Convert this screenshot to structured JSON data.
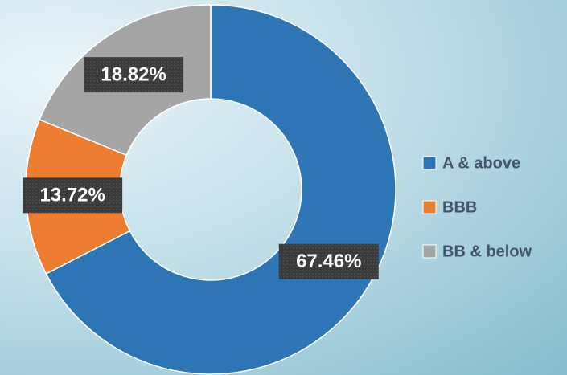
{
  "chart_data": {
    "type": "donut",
    "categories": [
      "A & above",
      "BBB",
      "BB & below"
    ],
    "values": [
      67.46,
      13.72,
      18.82
    ],
    "value_labels": [
      "67.46%",
      "13.72%",
      "18.82%"
    ],
    "colors": [
      "#2e75b6",
      "#ed7d31",
      "#a5a5a5"
    ],
    "legend": "right"
  }
}
